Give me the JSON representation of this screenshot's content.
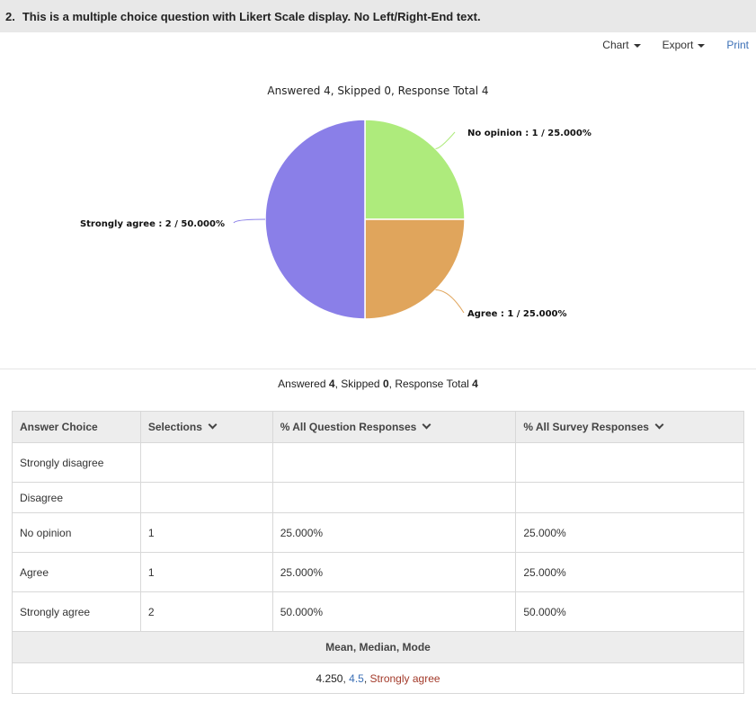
{
  "question": {
    "number": "2.",
    "title": "This is a multiple choice question with Likert Scale display. No Left/Right-End text."
  },
  "toolbar": {
    "chart_label": "Chart",
    "export_label": "Export",
    "print_label": "Print"
  },
  "chart_data": {
    "type": "pie",
    "title": "Answered 4, Skipped 0, Response Total 4",
    "slices": [
      {
        "name": "No opinion",
        "count": 1,
        "percent": "25.000%",
        "color": "#aeeb7c",
        "label": "No opinion : 1 / 25.000%"
      },
      {
        "name": "Agree",
        "count": 1,
        "percent": "25.000%",
        "color": "#e0a55c",
        "label": "Agree : 1 / 25.000%"
      },
      {
        "name": "Strongly agree",
        "count": 2,
        "percent": "50.000%",
        "color": "#8a7fe8",
        "label": "Strongly agree : 2 / 50.000%"
      }
    ]
  },
  "summary": {
    "answered_label": "Answered",
    "answered": "4",
    "skipped_label": "Skipped",
    "skipped": "0",
    "total_label": "Response Total",
    "total": "4"
  },
  "table": {
    "headers": [
      "Answer Choice",
      "Selections",
      "% All Question Responses",
      "% All Survey Responses"
    ],
    "rows": [
      {
        "choice": "Strongly disagree",
        "selections": "",
        "q_pct": "",
        "s_pct": ""
      },
      {
        "choice": "Disagree",
        "selections": "",
        "q_pct": "",
        "s_pct": ""
      },
      {
        "choice": "No opinion",
        "selections": "1",
        "q_pct": "25.000%",
        "s_pct": "25.000%"
      },
      {
        "choice": "Agree",
        "selections": "1",
        "q_pct": "25.000%",
        "s_pct": "25.000%"
      },
      {
        "choice": "Strongly agree",
        "selections": "2",
        "q_pct": "50.000%",
        "s_pct": "50.000%"
      }
    ],
    "stats_header": "Mean, Median, Mode",
    "mean": "4.250",
    "median": "4.5",
    "mode": "Strongly agree"
  }
}
